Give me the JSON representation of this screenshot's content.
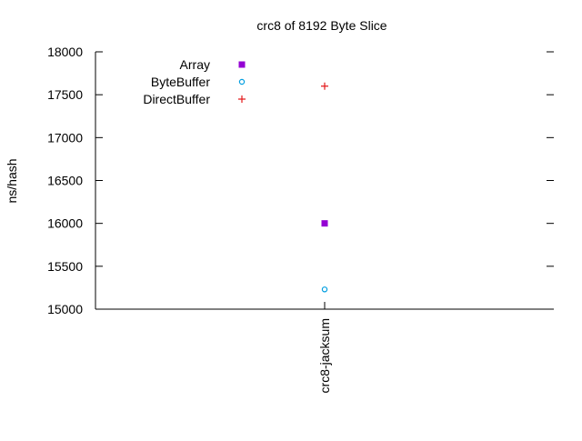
{
  "chart_data": {
    "type": "scatter",
    "title": "crc8 of 8192 Byte Slice",
    "xlabel": "",
    "ylabel": "ns/hash",
    "categories": [
      "crc8-jacksum"
    ],
    "ylim": [
      15000,
      18000
    ],
    "yticks": [
      15000,
      15500,
      16000,
      16500,
      17000,
      17500,
      18000
    ],
    "grid": false,
    "legend_position": "top-left",
    "series": [
      {
        "name": "Array",
        "values": [
          16000
        ],
        "color": "#9400d3",
        "marker": "filled-square"
      },
      {
        "name": "ByteBuffer",
        "values": [
          15230
        ],
        "color": "#009ee0",
        "marker": "open-circle"
      },
      {
        "name": "DirectBuffer",
        "values": [
          17600
        ],
        "color": "#e41a1c",
        "marker": "plus"
      }
    ]
  }
}
